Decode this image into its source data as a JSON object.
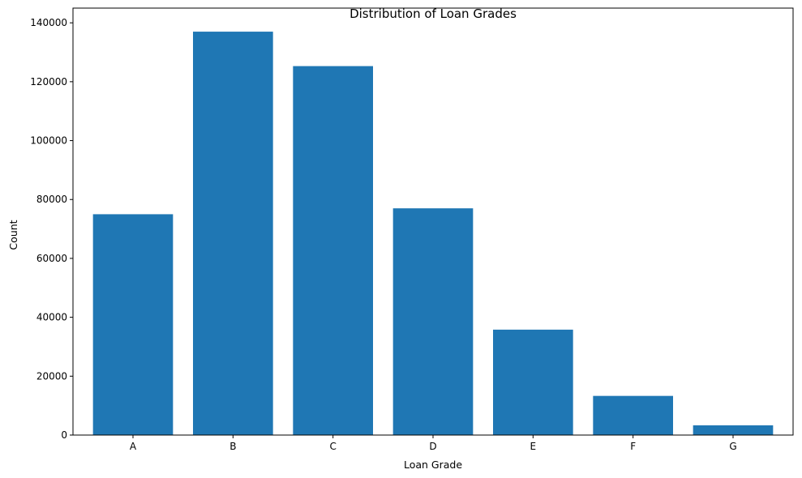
{
  "chart_data": {
    "type": "bar",
    "title": "Distribution of Loan Grades",
    "xlabel": "Loan Grade",
    "ylabel": "Count",
    "categories": [
      "A",
      "B",
      "C",
      "D",
      "E",
      "F",
      "G"
    ],
    "values": [
      75000,
      137000,
      125300,
      77000,
      35800,
      13300,
      3300
    ],
    "ylim": [
      0,
      145000
    ],
    "yticks": [
      0,
      20000,
      40000,
      60000,
      80000,
      100000,
      120000,
      140000
    ],
    "ytick_labels": [
      "0",
      "20000",
      "40000",
      "60000",
      "80000",
      "100000",
      "120000",
      "140000"
    ],
    "bar_color": "#1f77b4",
    "grid": false,
    "legend": false
  }
}
